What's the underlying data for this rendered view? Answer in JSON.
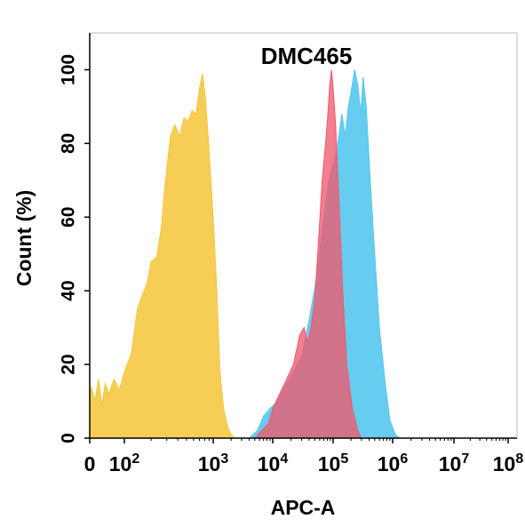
{
  "chart_data": {
    "type": "area",
    "title": "DMC465",
    "xlabel": "APC-A",
    "ylabel": "Count  (%)",
    "xscale": "biexponential",
    "ylim": [
      0,
      110
    ],
    "y_ticks": [
      0,
      20,
      40,
      60,
      80,
      100
    ],
    "x_ticks": [
      {
        "label": "0",
        "exp": null,
        "value": 0
      },
      {
        "label": "10",
        "exp": "2",
        "value": 100
      },
      {
        "label": "10",
        "exp": "3",
        "value": 1000
      },
      {
        "label": "10",
        "exp": "4",
        "value": 10000
      },
      {
        "label": "10",
        "exp": "5",
        "value": 100000
      },
      {
        "label": "10",
        "exp": "6",
        "value": 1000000
      },
      {
        "label": "10",
        "exp": "7",
        "value": 10000000
      },
      {
        "label": "10",
        "exp": "8",
        "value": 100000000
      }
    ],
    "grid": false,
    "legend": "none",
    "series": [
      {
        "color": "#f5c842",
        "points": [
          [
            -30,
            18
          ],
          [
            -15,
            10
          ],
          [
            -5,
            12
          ],
          [
            5,
            14
          ],
          [
            15,
            10
          ],
          [
            25,
            16
          ],
          [
            35,
            9
          ],
          [
            45,
            15
          ],
          [
            55,
            12
          ],
          [
            70,
            16
          ],
          [
            85,
            13
          ],
          [
            100,
            18
          ],
          [
            120,
            23
          ],
          [
            140,
            35
          ],
          [
            160,
            39
          ],
          [
            180,
            42
          ],
          [
            200,
            48
          ],
          [
            230,
            49
          ],
          [
            260,
            57
          ],
          [
            290,
            70
          ],
          [
            330,
            82
          ],
          [
            370,
            85
          ],
          [
            420,
            82
          ],
          [
            470,
            87
          ],
          [
            520,
            86
          ],
          [
            580,
            89
          ],
          [
            640,
            88
          ],
          [
            700,
            95
          ],
          [
            760,
            99
          ],
          [
            820,
            92
          ],
          [
            900,
            78
          ],
          [
            1000,
            60
          ],
          [
            1150,
            40
          ],
          [
            1300,
            18
          ],
          [
            1500,
            8
          ],
          [
            1750,
            3
          ],
          [
            2000,
            1
          ],
          [
            2300,
            0
          ]
        ]
      },
      {
        "color": "#55c8ee",
        "points": [
          [
            4000,
            0
          ],
          [
            5500,
            2
          ],
          [
            7000,
            6
          ],
          [
            9000,
            8
          ],
          [
            12000,
            10
          ],
          [
            16000,
            14
          ],
          [
            22000,
            18
          ],
          [
            30000,
            22
          ],
          [
            40000,
            32
          ],
          [
            55000,
            45
          ],
          [
            70000,
            60
          ],
          [
            85000,
            70
          ],
          [
            100000,
            74
          ],
          [
            120000,
            80
          ],
          [
            140000,
            88
          ],
          [
            160000,
            82
          ],
          [
            180000,
            90
          ],
          [
            200000,
            94
          ],
          [
            230000,
            100
          ],
          [
            260000,
            96
          ],
          [
            290000,
            88
          ],
          [
            320000,
            98
          ],
          [
            360000,
            90
          ],
          [
            420000,
            70
          ],
          [
            500000,
            50
          ],
          [
            600000,
            30
          ],
          [
            750000,
            15
          ],
          [
            900000,
            5
          ],
          [
            1100000,
            1
          ],
          [
            1300000,
            0
          ]
        ]
      },
      {
        "color": "#f05a6e",
        "opacity": 0.78,
        "points": [
          [
            5000,
            0
          ],
          [
            6500,
            2
          ],
          [
            8500,
            4
          ],
          [
            10000,
            8
          ],
          [
            13000,
            12
          ],
          [
            17000,
            16
          ],
          [
            22000,
            20
          ],
          [
            28000,
            28
          ],
          [
            33000,
            30
          ],
          [
            38000,
            26
          ],
          [
            43000,
            30
          ],
          [
            50000,
            38
          ],
          [
            58000,
            55
          ],
          [
            66000,
            70
          ],
          [
            75000,
            80
          ],
          [
            82000,
            88
          ],
          [
            88000,
            96
          ],
          [
            94000,
            100
          ],
          [
            100000,
            95
          ],
          [
            110000,
            85
          ],
          [
            125000,
            65
          ],
          [
            145000,
            40
          ],
          [
            170000,
            20
          ],
          [
            210000,
            8
          ],
          [
            260000,
            2
          ],
          [
            300000,
            0
          ]
        ]
      }
    ]
  }
}
